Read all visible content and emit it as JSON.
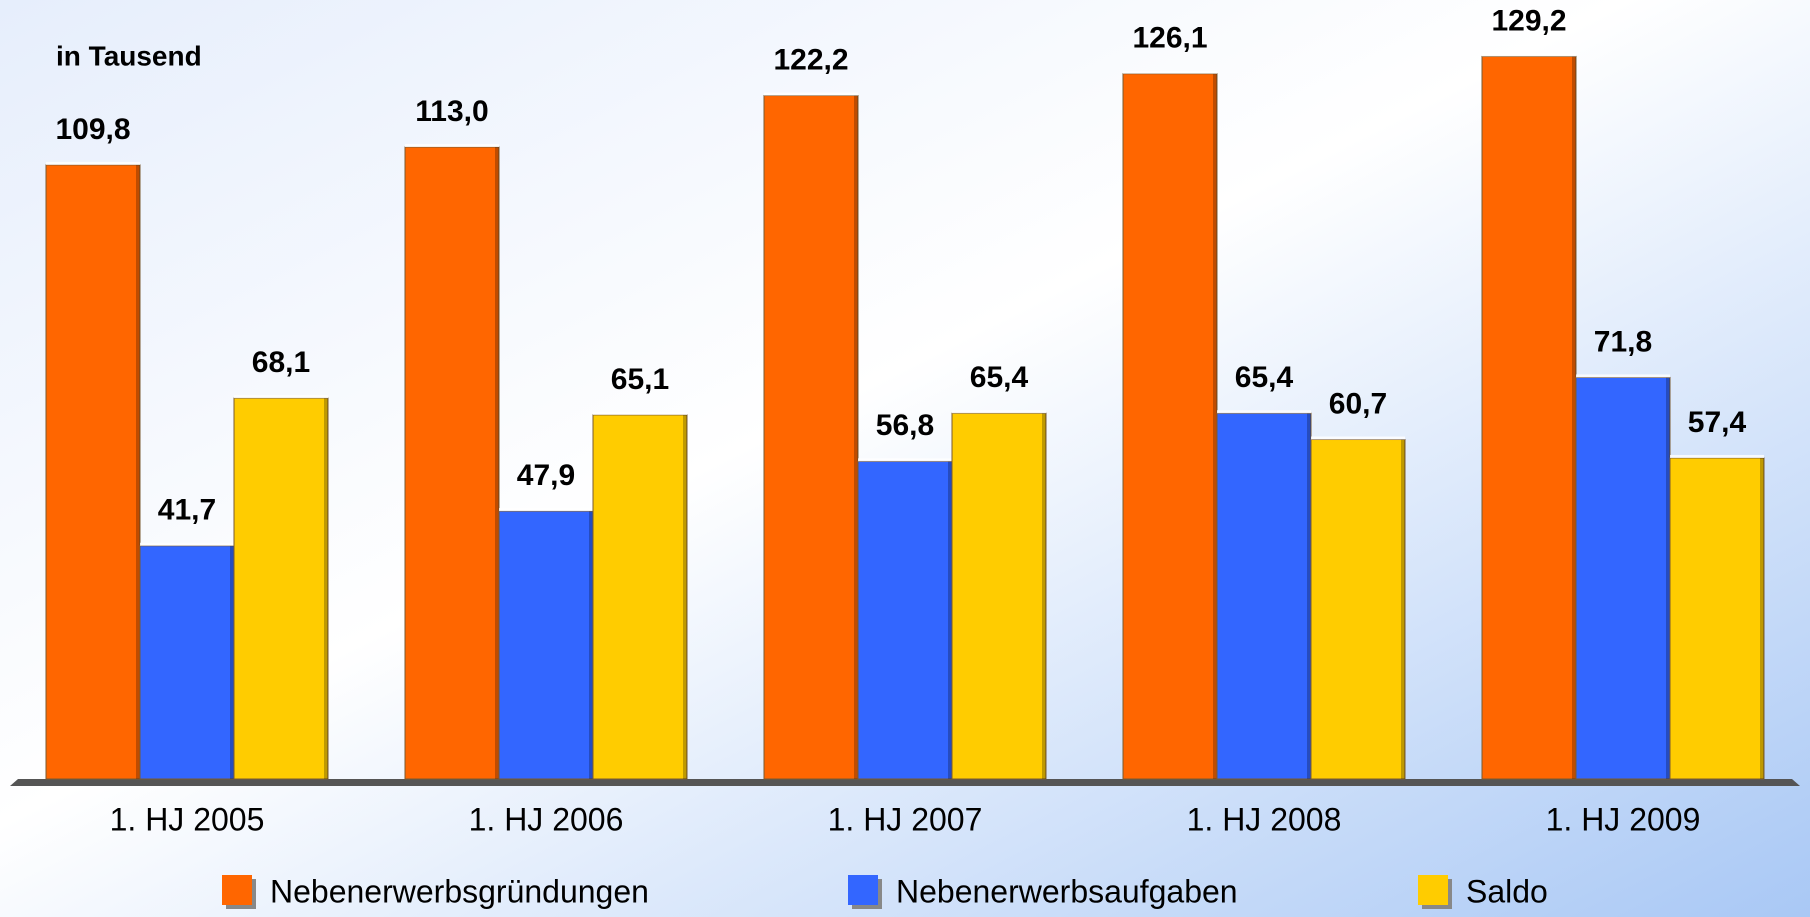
{
  "chart_data": {
    "type": "bar",
    "annotation": "in Tausend",
    "categories": [
      "1. HJ 2005",
      "1. HJ 2006",
      "1. HJ 2007",
      "1. HJ 2008",
      "1. HJ 2009"
    ],
    "series": [
      {
        "name": "Nebenerwerbsgründungen",
        "color": "#ff6600",
        "values": [
          109.8,
          113.0,
          122.2,
          126.1,
          129.2
        ],
        "value_labels": [
          "109,8",
          "113,0",
          "122,2",
          "126,1",
          "129,2"
        ]
      },
      {
        "name": "Nebenerwerbsaufgaben",
        "color": "#3366ff",
        "values": [
          41.7,
          47.9,
          56.8,
          65.4,
          71.8
        ],
        "value_labels": [
          "41,7",
          "47,9",
          "56,8",
          "65,4",
          "71,8"
        ]
      },
      {
        "name": "Saldo",
        "color": "#ffcc00",
        "values": [
          68.1,
          65.1,
          65.4,
          60.7,
          57.4
        ],
        "value_labels": [
          "68,1",
          "65,1",
          "65,4",
          "60,7",
          "57,4"
        ]
      }
    ],
    "ylim": [
      0,
      140
    ],
    "legend": "bottom"
  }
}
